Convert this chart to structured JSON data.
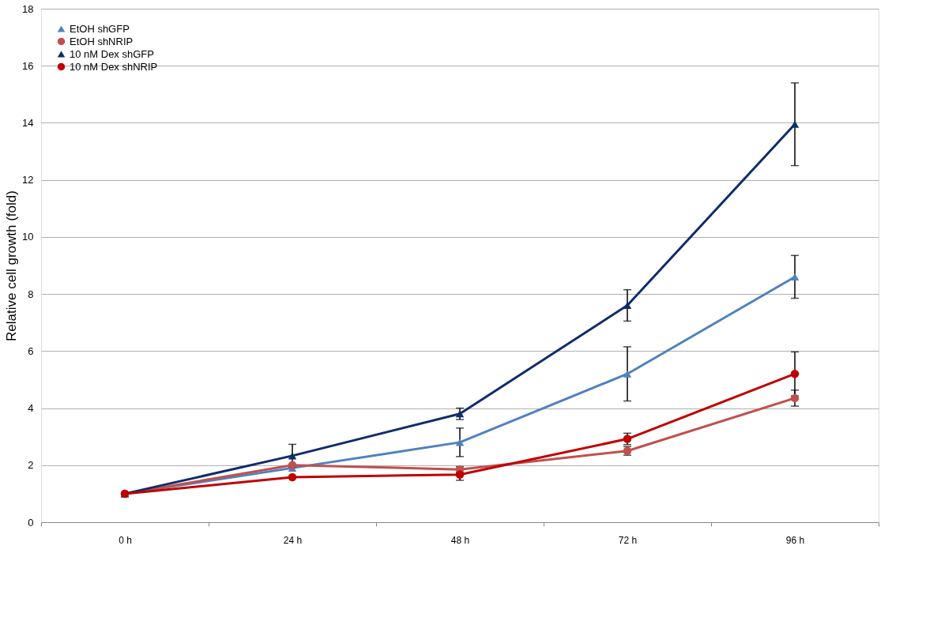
{
  "chart_data": {
    "type": "line",
    "ylabel": "Relative cell growth (fold)",
    "categories": [
      "0 h",
      "24 h",
      "48 h",
      "72 h",
      "96 h"
    ],
    "series": [
      {
        "name": "EtOH shGFP",
        "color": "#4f81bd",
        "marker": "triangle",
        "values": [
          1,
          1.9,
          2.8,
          5.2,
          8.6
        ],
        "errors": [
          null,
          null,
          0.5,
          0.95,
          0.75
        ]
      },
      {
        "name": "EtOH shNRIP",
        "color": "#c0504d",
        "marker": "circle",
        "values": [
          1,
          2.0,
          1.85,
          2.5,
          4.35
        ],
        "errors": [
          null,
          null,
          0.1,
          0.15,
          0.28
        ]
      },
      {
        "name": "10 nM Dex shGFP",
        "color": "#0f2c6b",
        "marker": "triangle",
        "values": [
          1,
          2.33,
          3.8,
          7.6,
          13.95
        ],
        "errors": [
          null,
          0.4,
          0.2,
          0.55,
          1.45
        ]
      },
      {
        "name": "10 nM Dex shNRIP",
        "color": "#c00000",
        "marker": "circle",
        "values": [
          1,
          1.58,
          1.67,
          2.92,
          5.2
        ],
        "errors": [
          null,
          null,
          0.2,
          0.2,
          0.77
        ]
      }
    ],
    "ylim": [
      0,
      18
    ],
    "yticks": [
      0,
      2,
      4,
      6,
      8,
      10,
      12,
      14,
      16,
      18
    ],
    "grid": "y",
    "legend": "top left"
  }
}
